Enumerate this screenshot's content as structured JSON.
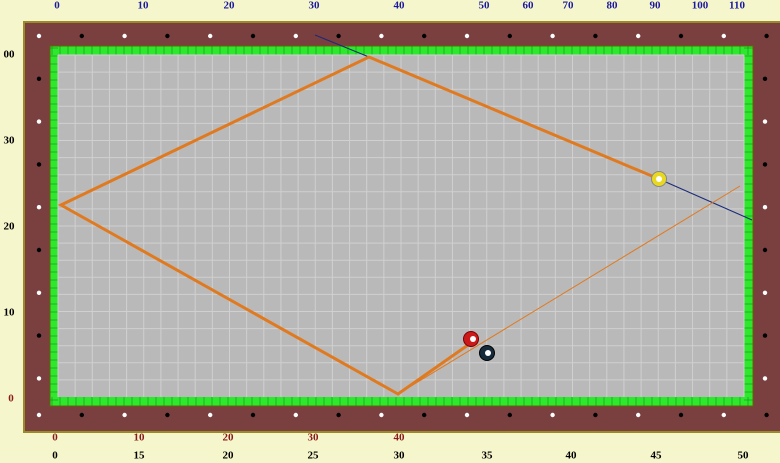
{
  "top_scale": [
    "0",
    "10",
    "20",
    "30",
    "40",
    "50",
    "60",
    "70",
    "80",
    "90",
    "100",
    "110"
  ],
  "left_scale": [
    "00",
    "30",
    "20",
    "10",
    "0"
  ],
  "bottom_scale_red": [
    "0",
    "10",
    "20",
    "30",
    "40"
  ],
  "bottom_scale_black": [
    "0",
    "15",
    "20",
    "25",
    "30",
    "35",
    "40",
    "45",
    "50"
  ]
}
